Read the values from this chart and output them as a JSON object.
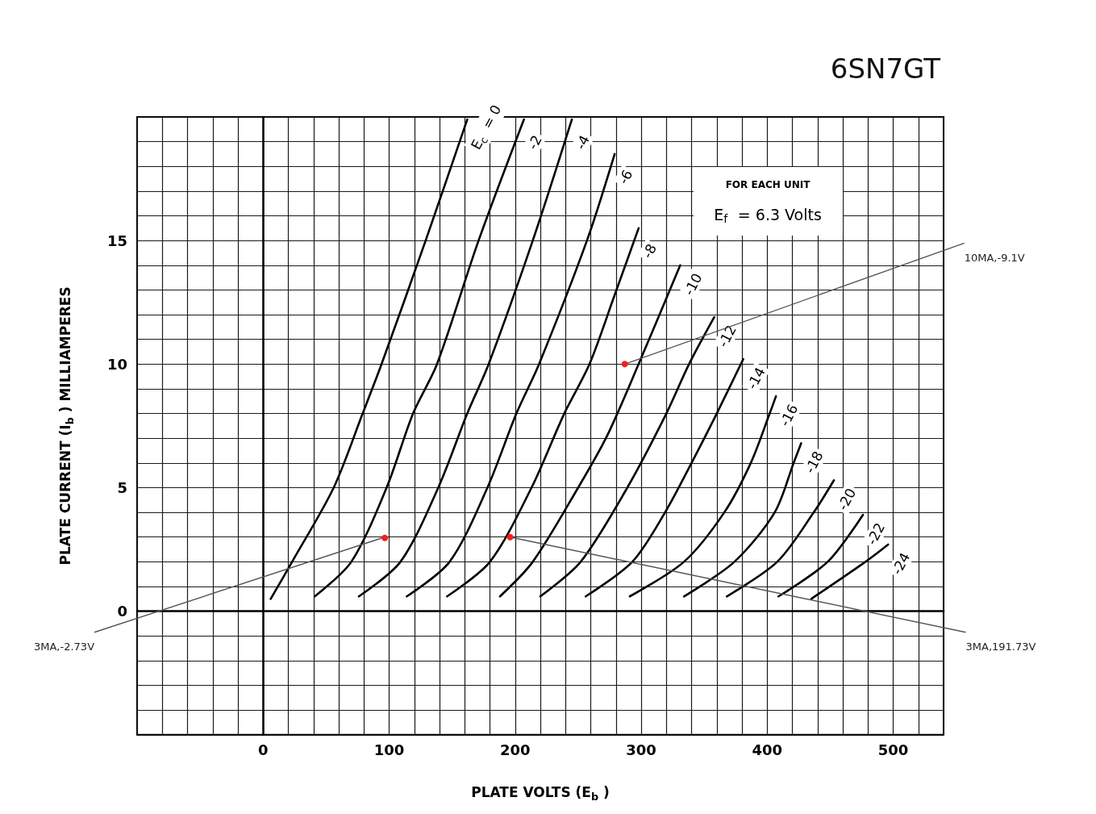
{
  "chart_data": {
    "type": "line",
    "title": "6SN7GT",
    "xlabel": "PLATE VOLTS (E$_{b}$)",
    "ylabel": "PLATE CURRENT (I$_{b}$) MILLIAMPERES",
    "xlim": [
      -100,
      540
    ],
    "ylim": [
      -5,
      20
    ],
    "xticks": [
      {
        "value": -100,
        "label": null
      },
      {
        "value": -80,
        "label": null
      },
      {
        "value": -60,
        "label": null
      },
      {
        "value": -40,
        "label": null
      },
      {
        "value": -20,
        "label": null
      },
      0,
      {
        "value": 20,
        "label": null
      },
      {
        "value": 40,
        "label": null
      },
      {
        "value": 60,
        "label": null
      },
      {
        "value": 80,
        "label": null
      },
      100,
      {
        "value": 120,
        "label": null
      },
      {
        "value": 140,
        "label": null
      },
      {
        "value": 160,
        "label": null
      },
      {
        "value": 180,
        "label": null
      },
      200,
      {
        "value": 220,
        "label": null
      },
      {
        "value": 240,
        "label": null
      },
      {
        "value": 260,
        "label": null
      },
      {
        "value": 280,
        "label": null
      },
      300,
      {
        "value": 320,
        "label": null
      },
      {
        "value": 340,
        "label": null
      },
      {
        "value": 360,
        "label": null
      },
      {
        "value": 380,
        "label": null
      },
      400,
      {
        "value": 420,
        "label": null
      },
      {
        "value": 440,
        "label": null
      },
      {
        "value": 460,
        "label": null
      },
      {
        "value": 480,
        "label": null
      },
      500,
      {
        "value": 520,
        "label": null
      },
      {
        "value": 540,
        "label": null
      }
    ],
    "yticks": [
      {
        "value": -5,
        "label": null
      },
      {
        "value": -4,
        "label": null
      },
      {
        "value": -3,
        "label": null
      },
      {
        "value": -2,
        "label": null
      },
      {
        "value": -1,
        "label": null
      },
      0,
      {
        "value": 1,
        "label": null
      },
      {
        "value": 2,
        "label": null
      },
      {
        "value": 3,
        "label": null
      },
      {
        "value": 4,
        "label": null
      },
      5,
      {
        "value": 6,
        "label": null
      },
      {
        "value": 7,
        "label": null
      },
      {
        "value": 8,
        "label": null
      },
      {
        "value": 9,
        "label": null
      },
      10,
      {
        "value": 11,
        "label": null
      },
      {
        "value": 12,
        "label": null
      },
      {
        "value": 13,
        "label": null
      },
      {
        "value": 14,
        "label": null
      },
      15,
      {
        "value": 16,
        "label": null
      },
      {
        "value": 17,
        "label": null
      },
      {
        "value": 18,
        "label": null
      },
      {
        "value": 19,
        "label": null
      },
      {
        "value": 20,
        "label": null
      }
    ],
    "grid": true,
    "marker": "none",
    "line_style": "solid",
    "series": [
      {
        "name": "E$_{c}$ = 0",
        "color": "#000000",
        "x": [
          6,
          23,
          56,
          79,
          94,
          129,
          162
        ],
        "values": [
          0.5,
          2,
          5,
          8,
          10,
          15,
          19.9
        ]
      },
      {
        "name": "-2",
        "color": "#000000",
        "x": [
          41,
          70,
          98,
          119,
          138,
          171,
          207
        ],
        "values": [
          0.6,
          2,
          5,
          8,
          10,
          15,
          19.9
        ]
      },
      {
        "name": "-4",
        "color": "#000000",
        "x": [
          76,
          109,
          139,
          162,
          179,
          214,
          245
        ],
        "values": [
          0.6,
          2,
          5,
          8,
          10,
          15,
          19.9
        ]
      },
      {
        "name": "-6",
        "color": "#000000",
        "x": [
          114,
          148,
          178,
          201,
          219,
          257,
          279
        ],
        "values": [
          0.6,
          2,
          5,
          8,
          10,
          15,
          18.5
        ]
      },
      {
        "name": "-8",
        "color": "#000000",
        "x": [
          146,
          180,
          213,
          239,
          259,
          279,
          298
        ],
        "values": [
          0.6,
          2,
          5,
          8,
          10,
          12.8,
          15.5
        ]
      },
      {
        "name": "-10",
        "color": "#000000",
        "x": [
          188,
          214,
          250,
          273,
          298,
          331
        ],
        "values": [
          0.6,
          2,
          5,
          7.1,
          10,
          14
        ]
      },
      {
        "name": "-12",
        "color": "#000000",
        "x": [
          220,
          252,
          289,
          320,
          338,
          358
        ],
        "values": [
          0.6,
          2,
          5,
          8,
          10,
          11.9
        ]
      },
      {
        "name": "-14",
        "color": "#000000",
        "x": [
          256,
          293,
          319,
          340,
          360,
          381
        ],
        "values": [
          0.6,
          2,
          4,
          6,
          8,
          10.2
        ]
      },
      {
        "name": "-16",
        "color": "#000000",
        "x": [
          291,
          334,
          366,
          387,
          402,
          407
        ],
        "values": [
          0.6,
          2,
          4,
          6,
          8,
          8.7
        ]
      },
      {
        "name": "-18",
        "color": "#000000",
        "x": [
          334,
          374,
          406,
          421,
          427
        ],
        "values": [
          0.6,
          2,
          4,
          6,
          6.8
        ]
      },
      {
        "name": "-20",
        "color": "#000000",
        "x": [
          368,
          408,
          437,
          453
        ],
        "values": [
          0.6,
          2,
          4,
          5.3
        ]
      },
      {
        "name": "-22",
        "color": "#000000",
        "x": [
          409,
          448,
          476
        ],
        "values": [
          0.6,
          2,
          3.9
        ]
      },
      {
        "name": "-24",
        "color": "#000000",
        "x": [
          435,
          478,
          496
        ],
        "values": [
          0.5,
          2,
          2.7
        ]
      }
    ],
    "annotations": [
      "FOR EACH UNIT",
      "E$_{f}$ = 6.3 Volts",
      {
        "text": "3MA,-2.73V",
        "x": 96.5,
        "y": 3
      },
      {
        "text": "3MA,191.73V",
        "x": 196,
        "y": 3
      },
      {
        "text": "10MA,-9.1V",
        "x": 287,
        "y": 10
      }
    ]
  }
}
